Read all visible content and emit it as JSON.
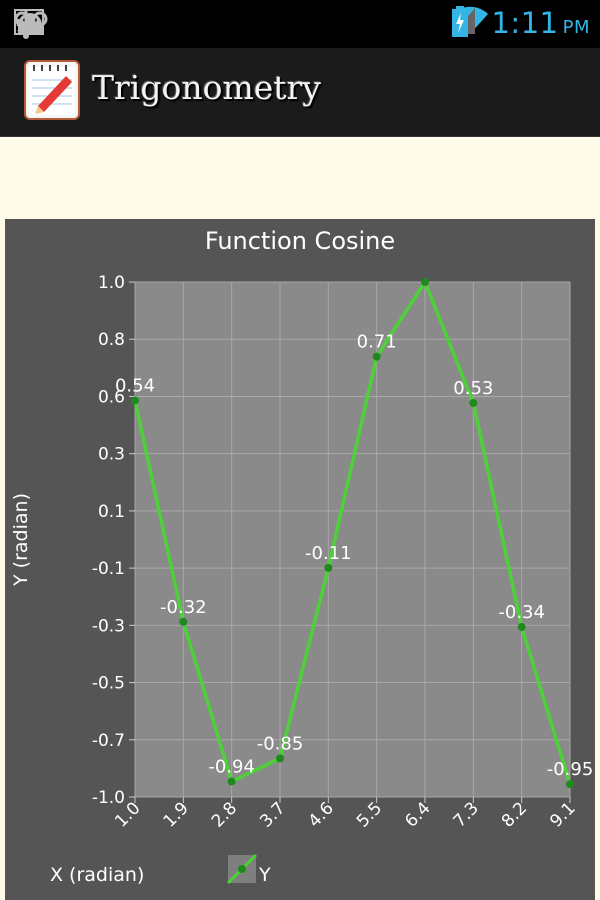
{
  "status_bar": {
    "icons": [
      "image-icon",
      "voicemail-icon",
      "android-icon",
      "usb-icon"
    ],
    "right_icons": [
      "mute-icon",
      "wifi-icon",
      "signal-icon",
      "battery-icon"
    ],
    "time": "1:11",
    "ampm": "PM"
  },
  "action_bar": {
    "title": "Trigonometry",
    "icon": "notepad-pencil-icon"
  },
  "colors": {
    "status_time": "#33b5e5",
    "series": "#4cd137",
    "plot_bg": "#8a8a8a",
    "panel_bg": "#555555",
    "cream": "#fefce8"
  },
  "chart_data": {
    "type": "line",
    "title": "Function Cosine",
    "xlabel": "X (radian)",
    "ylabel": "Y (radian)",
    "x_ticks": [
      "1.0",
      "1.9",
      "2.8",
      "3.7",
      "4.6",
      "5.5",
      "6.4",
      "7.3",
      "8.2",
      "9.1"
    ],
    "y_ticks": [
      "1.0",
      "0.8",
      "0.6",
      "0.3",
      "0.1",
      "-0.1",
      "-0.3",
      "-0.5",
      "-0.7",
      "-1.0"
    ],
    "xlim": [
      1.0,
      9.1
    ],
    "ylim": [
      -1.0,
      1.0
    ],
    "grid": true,
    "legend": "bottom-left",
    "series": [
      {
        "name": "Y",
        "x": [
          1.0,
          1.9,
          2.8,
          3.7,
          4.6,
          5.5,
          6.4,
          7.3,
          8.2,
          9.1
        ],
        "values": [
          0.54,
          -0.32,
          -0.94,
          -0.85,
          -0.11,
          0.71,
          1.0,
          0.53,
          -0.34,
          -0.95
        ],
        "labels": [
          "0.54",
          "-0.32",
          "-0.94",
          "-0.85",
          "-0.11",
          "0.71",
          "",
          "0.53",
          "-0.34",
          "-0.95"
        ]
      }
    ]
  }
}
